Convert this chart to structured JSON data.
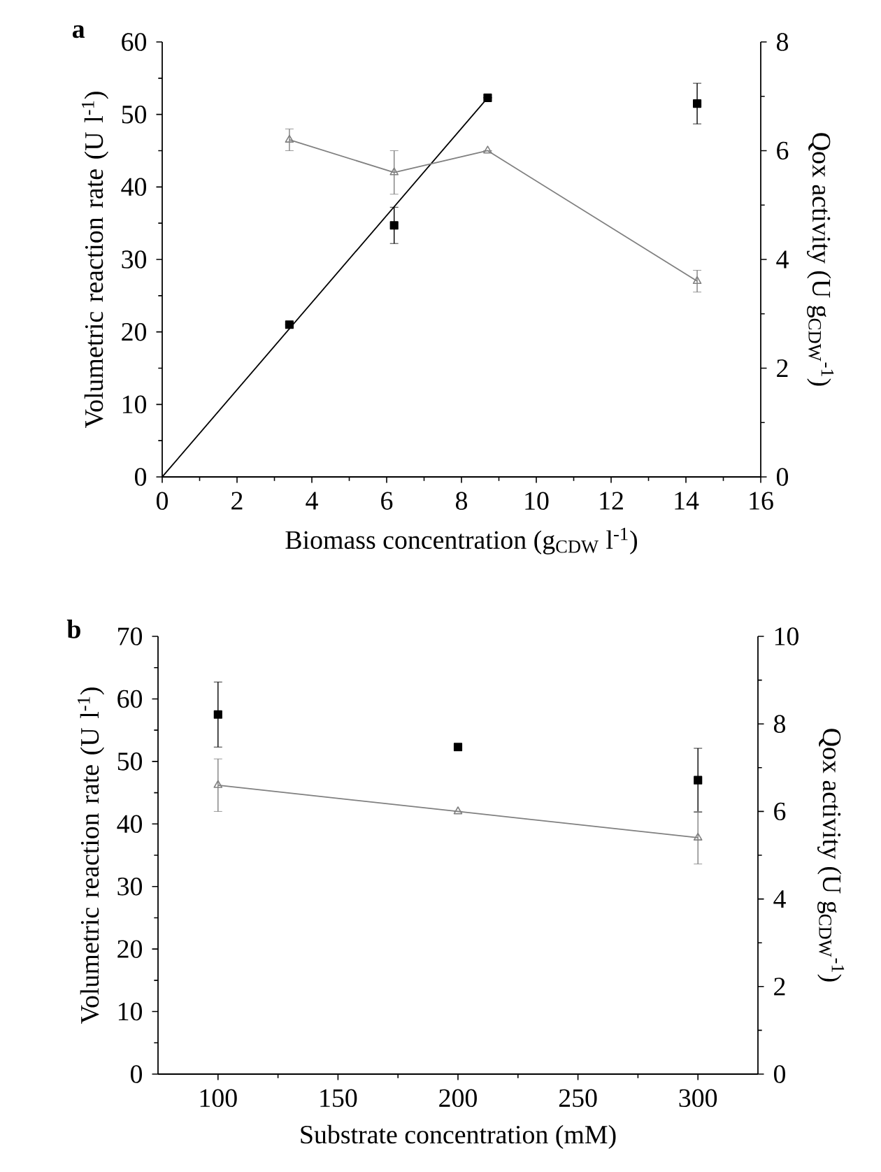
{
  "chart_data": [
    {
      "type": "scatter",
      "title": "a",
      "xlabel": "Biomass concentration (g$_{CDW}$ l$^{-1}$)",
      "ylabel": "Volumetric reaction rate (U l$^{-1}$)",
      "y2label": "Qox activity (U g$_{CDW}$$^{-1}$)",
      "xlim": [
        0,
        16
      ],
      "xticks": [
        0,
        2,
        4,
        6,
        8,
        10,
        12,
        14,
        16
      ],
      "ylim": [
        0,
        60
      ],
      "yticks": [
        0,
        10,
        20,
        30,
        40,
        50,
        60
      ],
      "y2lim": [
        0,
        8
      ],
      "y2ticks": [
        0,
        2,
        4,
        6,
        8
      ],
      "series": [
        {
          "type": "line",
          "color": "#000000",
          "marker": "none",
          "x": [
            0,
            8.7
          ],
          "values": [
            0,
            52.3
          ]
        },
        {
          "color": "#000000",
          "marker": "square",
          "x": [
            3.4,
            6.2,
            8.7,
            14.3
          ],
          "values": [
            21,
            34.7,
            52.3,
            51.5
          ],
          "errors": [
            null,
            2.5,
            null,
            2.8
          ]
        },
        {
          "type": "line",
          "axis": "y2",
          "color": "#808080",
          "marker": "triangle",
          "x": [
            3.4,
            6.2,
            8.7,
            14.3
          ],
          "values": [
            6.2,
            5.6,
            6.0,
            3.6
          ],
          "errors": [
            0.2,
            0.4,
            null,
            0.2
          ]
        }
      ]
    },
    {
      "type": "scatter",
      "title": "b",
      "xlabel": "Substrate concentration (mM)",
      "ylabel": "Volumetric reaction rate (U l$^{-1}$)",
      "y2label": "Qox activity (U g$_{CDW}$$^{-1}$)",
      "xlim": [
        75,
        325
      ],
      "xticks": [
        100,
        150,
        200,
        250,
        300
      ],
      "ylim": [
        0,
        70
      ],
      "yticks": [
        0,
        10,
        20,
        30,
        40,
        50,
        60,
        70
      ],
      "y2lim": [
        0,
        10
      ],
      "y2ticks": [
        0,
        2,
        4,
        6,
        8,
        10
      ],
      "series": [
        {
          "color": "#000000",
          "marker": "square",
          "x": [
            100,
            200,
            300
          ],
          "values": [
            57.5,
            52.3,
            47
          ],
          "errors": [
            5.2,
            null,
            5.1
          ]
        },
        {
          "type": "line",
          "axis": "y2",
          "color": "#808080",
          "marker": "triangle",
          "x": [
            100,
            200,
            300
          ],
          "values": [
            6.6,
            6.0,
            5.4
          ],
          "errors": [
            0.6,
            null,
            0.6
          ]
        }
      ]
    }
  ]
}
